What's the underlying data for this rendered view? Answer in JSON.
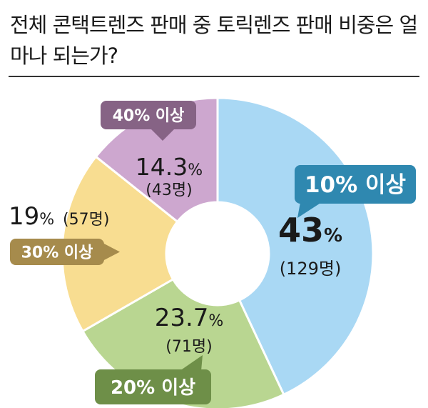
{
  "title": "전체 콘택트렌즈 판매 중 토릭렌즈 판매 비중은 얼마나 되는가?",
  "chart_data": {
    "type": "pie",
    "donut": true,
    "title": "전체 콘택트렌즈 판매 중 토릭렌즈 판매 비중은 얼마나 되는가?",
    "slices": [
      {
        "label": "10% 이상",
        "value": 43,
        "count": 129,
        "value_text": "43",
        "unit": "%",
        "count_text": "(129명)",
        "color": "#a9d8f4",
        "tag_color": "#2f88b0"
      },
      {
        "label": "20% 이상",
        "value": 23.7,
        "count": 71,
        "value_text": "23.7",
        "unit": "%",
        "count_text": "(71명)",
        "color": "#b9d691",
        "tag_color": "#6e8f48"
      },
      {
        "label": "30% 이상",
        "value": 19,
        "count": 57,
        "value_text": "19",
        "unit": "%",
        "count_text": "(57명)",
        "color": "#f8dd91",
        "tag_color": "#a68b4c"
      },
      {
        "label": "40% 이상",
        "value": 14.3,
        "count": 43,
        "value_text": "14.3",
        "unit": "%",
        "count_text": "(43명)",
        "color": "#cda7cf",
        "tag_color": "#866385"
      }
    ]
  }
}
